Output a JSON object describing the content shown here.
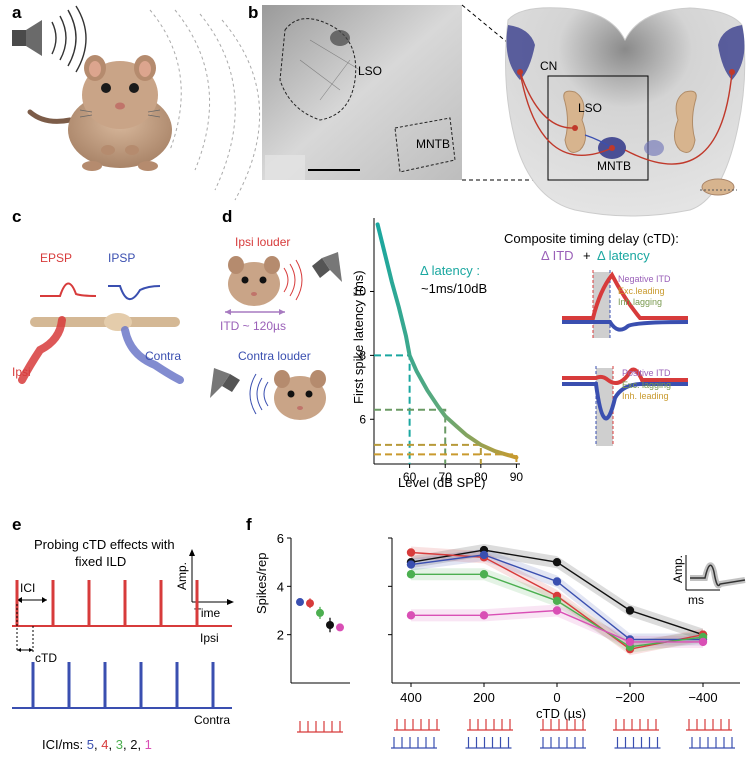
{
  "panels": {
    "a": "a",
    "b": "b",
    "c": "c",
    "d": "d",
    "e": "e",
    "f": "f"
  },
  "b": {
    "micro_lso": "LSO",
    "micro_mntb": "MNTB",
    "cn": "CN",
    "lso": "LSO",
    "mntb": "MNTB"
  },
  "c": {
    "epsp": "EPSP",
    "ipsp": "IPSP",
    "ipsi": "Ipsi",
    "contra": "Contra"
  },
  "d": {
    "ipsi_louder": "Ipsi louder",
    "contra_louder": "Contra louder",
    "itd": "ITD ~ 120µs",
    "delta_latency": "Δ latency :",
    "delta_rate": "~1ms/10dB",
    "ctd_title": "Composite timing delay (cTD):",
    "ctd_formula_itd": "Δ ITD",
    "ctd_formula_plus": "+",
    "ctd_formula_lat": "Δ latency",
    "neg": {
      "itd": "Negative ITD",
      "exc": "Exc.leading",
      "inh": "Inh.lagging"
    },
    "pos": {
      "itd": "Positive ITD",
      "exc": "Exc. lagging",
      "inh": "Inh. leading"
    }
  },
  "e": {
    "title_line1": "Probing cTD effects with",
    "title_line2": "fixed ILD",
    "ici": "ICI",
    "amp": "Amp.",
    "time": "Time",
    "ipsi": "Ipsi",
    "ctd": "cTD",
    "contra": "Contra",
    "legend_prefix": "ICI/ms:",
    "legend_values": [
      "5",
      ",",
      "4",
      ",",
      "3",
      ",",
      "2",
      ",",
      "1"
    ],
    "legend_colors": [
      "#3a4fb0",
      "#000000",
      "#d73b3b",
      "#000000",
      "#4caf50",
      "#000000",
      "#111111",
      "#000000",
      "#d94fb5"
    ]
  },
  "inset": {
    "amp": "Amp.",
    "ms": "ms"
  },
  "colors": {
    "red": "#d73b3b",
    "blue": "#3a4fb0",
    "green": "#4caf50",
    "black": "#111111",
    "magenta": "#d94fb5"
  },
  "chart_data": [
    {
      "type": "line",
      "title": "",
      "xlabel": "Level (dB SPL)",
      "ylabel": "First spike latency (ms)",
      "x_ticks": [
        60,
        70,
        80,
        90
      ],
      "y_ticks": [
        6,
        8,
        10
      ],
      "xlim": [
        50,
        91
      ],
      "ylim": [
        4.6,
        12.3
      ],
      "series": [
        {
          "name": "latency",
          "x": [
            51,
            53,
            55,
            57,
            59,
            60,
            62,
            65,
            68,
            70,
            73,
            76,
            80,
            84,
            87,
            90
          ],
          "values": [
            12.1,
            11.2,
            10.3,
            9.5,
            8.6,
            8.0,
            7.5,
            6.9,
            6.4,
            6.1,
            5.8,
            5.5,
            5.2,
            5.0,
            4.9,
            4.8
          ]
        }
      ],
      "dashed_markers": [
        {
          "x": 60,
          "y": 8.0
        },
        {
          "x": 70,
          "y": 6.3
        },
        {
          "x": 80,
          "y": 5.2
        },
        {
          "x": 90,
          "y": 4.9
        }
      ]
    },
    {
      "type": "scatter",
      "title": "",
      "ylabel": "Spikes/rep",
      "y_ticks": [
        2,
        4,
        6
      ],
      "ylim": [
        0,
        6
      ],
      "series": [
        {
          "name": "5",
          "value": 3.35,
          "err": 0.15,
          "color": "#3a4fb0"
        },
        {
          "name": "4",
          "value": 3.3,
          "err": 0.2,
          "color": "#d73b3b"
        },
        {
          "name": "3",
          "value": 2.9,
          "err": 0.25,
          "color": "#4caf50"
        },
        {
          "name": "2",
          "value": 2.4,
          "err": 0.3,
          "color": "#111111"
        },
        {
          "name": "1",
          "value": 2.3,
          "err": 0.15,
          "color": "#d94fb5"
        }
      ]
    },
    {
      "type": "line",
      "title": "",
      "xlabel": "cTD (µs)",
      "ylabel": "Spikes/rep",
      "categories": [
        "400",
        "200",
        "0",
        "−200",
        "−400"
      ],
      "x": [
        400,
        200,
        0,
        -200,
        -400
      ],
      "ylim": [
        0,
        6
      ],
      "series": [
        {
          "name": "2",
          "color": "#111111",
          "values": [
            5.0,
            5.5,
            5.0,
            3.0,
            2.0
          ]
        },
        {
          "name": "4",
          "color": "#d73b3b",
          "values": [
            5.4,
            5.2,
            3.6,
            1.4,
            2.0
          ]
        },
        {
          "name": "5",
          "color": "#3a4fb0",
          "values": [
            4.9,
            5.3,
            4.2,
            1.8,
            1.8
          ]
        },
        {
          "name": "3",
          "color": "#4caf50",
          "values": [
            4.5,
            4.5,
            3.4,
            1.5,
            1.9
          ]
        },
        {
          "name": "1",
          "color": "#d94fb5",
          "values": [
            2.8,
            2.8,
            3.0,
            1.7,
            1.7
          ]
        }
      ]
    }
  ]
}
